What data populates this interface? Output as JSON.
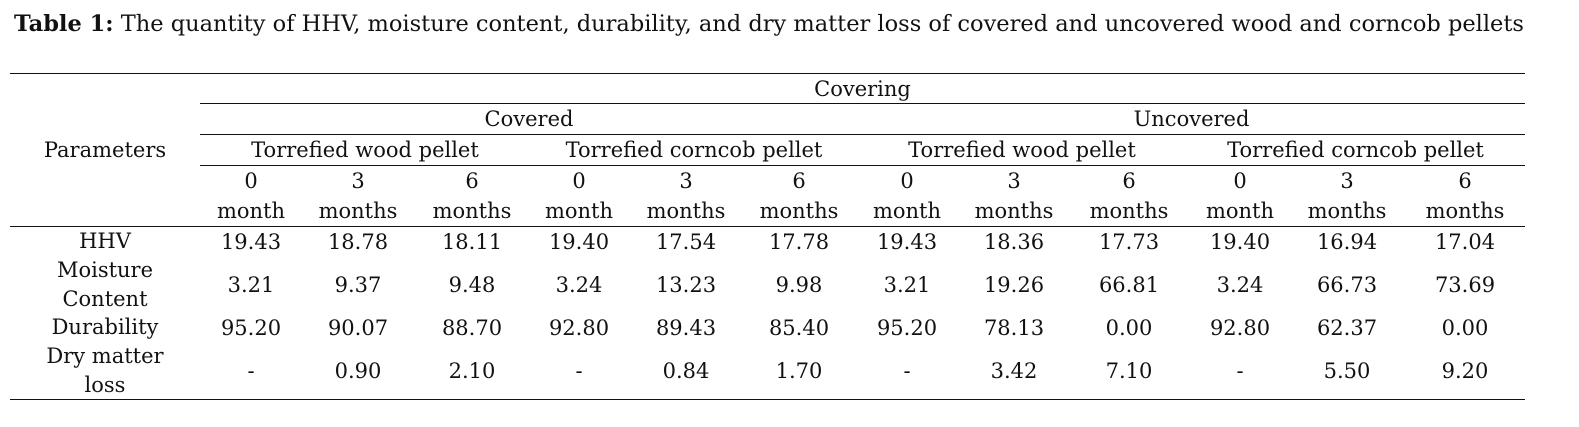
{
  "caption": {
    "label": "Table 1:",
    "text": " The quantity of HHV, moisture content, durability, and dry matter loss of covered and uncovered wood and corncob pellets"
  },
  "header": {
    "param_col": "Parameters",
    "covering": "Covering",
    "groups": [
      "Covered",
      "Uncovered"
    ],
    "pellets": [
      "Torrefied wood pellet",
      "Torrefied corncob pellet",
      "Torrefied wood pellet",
      "Torrefied corncob pellet"
    ],
    "periods": [
      {
        "num": "0",
        "unit": "month"
      },
      {
        "num": "3",
        "unit": "months"
      },
      {
        "num": "6",
        "unit": "months"
      },
      {
        "num": "0",
        "unit": "month"
      },
      {
        "num": "3",
        "unit": "months"
      },
      {
        "num": "6",
        "unit": "months"
      },
      {
        "num": "0",
        "unit": "month"
      },
      {
        "num": "3",
        "unit": "months"
      },
      {
        "num": "6",
        "unit": "months"
      },
      {
        "num": "0",
        "unit": "month"
      },
      {
        "num": "3",
        "unit": "months"
      },
      {
        "num": "6",
        "unit": "months"
      }
    ]
  },
  "rows": [
    {
      "param": "HHV",
      "values": [
        "19.43",
        "18.78",
        "18.11",
        "19.40",
        "17.54",
        "17.78",
        "19.43",
        "18.36",
        "17.73",
        "19.40",
        "16.94",
        "17.04"
      ]
    },
    {
      "param": "Moisture Content",
      "values": [
        "3.21",
        "9.37",
        "9.48",
        "3.24",
        "13.23",
        "9.98",
        "3.21",
        "19.26",
        "66.81",
        "3.24",
        "66.73",
        "73.69"
      ]
    },
    {
      "param": "Durability",
      "values": [
        "95.20",
        "90.07",
        "88.70",
        "92.80",
        "89.43",
        "85.40",
        "95.20",
        "78.13",
        "0.00",
        "92.80",
        "62.37",
        "0.00"
      ]
    },
    {
      "param": "Dry matter loss",
      "values": [
        "-",
        "0.90",
        "2.10",
        "-",
        "0.84",
        "1.70",
        "-",
        "3.42",
        "7.10",
        "-",
        "5.50",
        "9.20"
      ]
    }
  ]
}
